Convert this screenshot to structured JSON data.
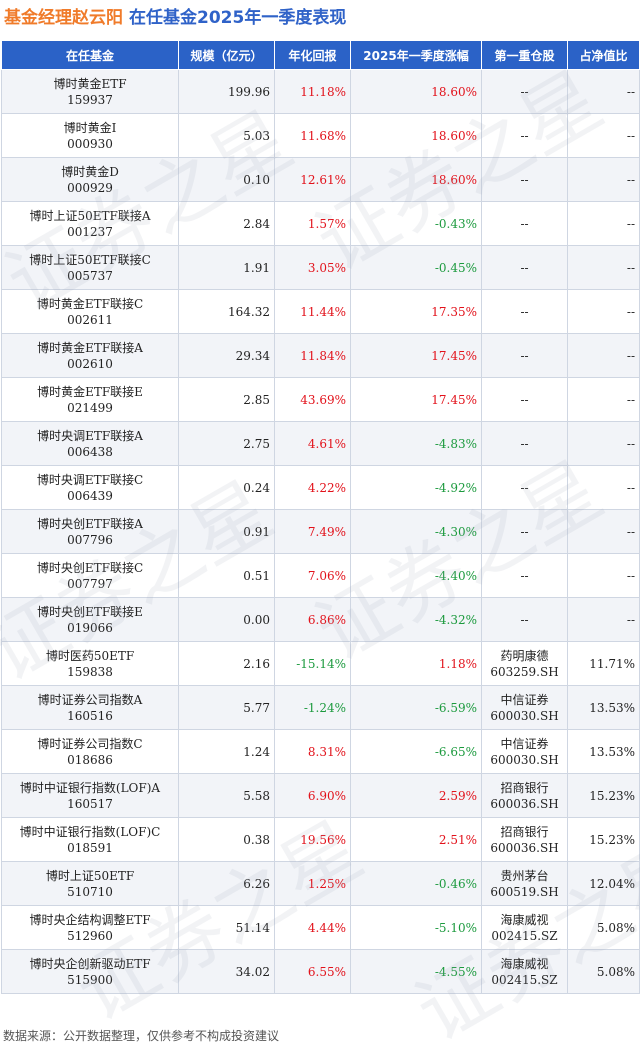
{
  "title": {
    "manager": "基金经理赵云阳",
    "subtitle": "在任基金2025年一季度表现"
  },
  "columns": [
    "在任基金",
    "规模（亿元）",
    "年化回报",
    "2025年一季度涨幅",
    "第一重仓股",
    "占净值比"
  ],
  "rows": [
    {
      "name": "博时黄金ETF",
      "code": "159937",
      "size": "199.96",
      "annual": "11.18%",
      "q1": "18.60%",
      "stock": "--",
      "stock_code": "",
      "ratio": "--"
    },
    {
      "name": "博时黄金I",
      "code": "000930",
      "size": "5.03",
      "annual": "11.68%",
      "q1": "18.60%",
      "stock": "--",
      "stock_code": "",
      "ratio": "--"
    },
    {
      "name": "博时黄金D",
      "code": "000929",
      "size": "0.10",
      "annual": "12.61%",
      "q1": "18.60%",
      "stock": "--",
      "stock_code": "",
      "ratio": "--"
    },
    {
      "name": "博时上证50ETF联接A",
      "code": "001237",
      "size": "2.84",
      "annual": "1.57%",
      "q1": "-0.43%",
      "stock": "--",
      "stock_code": "",
      "ratio": "--"
    },
    {
      "name": "博时上证50ETF联接C",
      "code": "005737",
      "size": "1.91",
      "annual": "3.05%",
      "q1": "-0.45%",
      "stock": "--",
      "stock_code": "",
      "ratio": "--"
    },
    {
      "name": "博时黄金ETF联接C",
      "code": "002611",
      "size": "164.32",
      "annual": "11.44%",
      "q1": "17.35%",
      "stock": "--",
      "stock_code": "",
      "ratio": "--"
    },
    {
      "name": "博时黄金ETF联接A",
      "code": "002610",
      "size": "29.34",
      "annual": "11.84%",
      "q1": "17.45%",
      "stock": "--",
      "stock_code": "",
      "ratio": "--"
    },
    {
      "name": "博时黄金ETF联接E",
      "code": "021499",
      "size": "2.85",
      "annual": "43.69%",
      "q1": "17.45%",
      "stock": "--",
      "stock_code": "",
      "ratio": "--"
    },
    {
      "name": "博时央调ETF联接A",
      "code": "006438",
      "size": "2.75",
      "annual": "4.61%",
      "q1": "-4.83%",
      "stock": "--",
      "stock_code": "",
      "ratio": "--"
    },
    {
      "name": "博时央调ETF联接C",
      "code": "006439",
      "size": "0.24",
      "annual": "4.22%",
      "q1": "-4.92%",
      "stock": "--",
      "stock_code": "",
      "ratio": "--"
    },
    {
      "name": "博时央创ETF联接A",
      "code": "007796",
      "size": "0.91",
      "annual": "7.49%",
      "q1": "-4.30%",
      "stock": "--",
      "stock_code": "",
      "ratio": "--"
    },
    {
      "name": "博时央创ETF联接C",
      "code": "007797",
      "size": "0.51",
      "annual": "7.06%",
      "q1": "-4.40%",
      "stock": "--",
      "stock_code": "",
      "ratio": "--"
    },
    {
      "name": "博时央创ETF联接E",
      "code": "019066",
      "size": "0.00",
      "annual": "6.86%",
      "q1": "-4.32%",
      "stock": "--",
      "stock_code": "",
      "ratio": "--"
    },
    {
      "name": "博时医药50ETF",
      "code": "159838",
      "size": "2.16",
      "annual": "-15.14%",
      "q1": "1.18%",
      "stock": "药明康德",
      "stock_code": "603259.SH",
      "ratio": "11.71%"
    },
    {
      "name": "博时证券公司指数A",
      "code": "160516",
      "size": "5.77",
      "annual": "-1.24%",
      "q1": "-6.59%",
      "stock": "中信证券",
      "stock_code": "600030.SH",
      "ratio": "13.53%"
    },
    {
      "name": "博时证券公司指数C",
      "code": "018686",
      "size": "1.24",
      "annual": "8.31%",
      "q1": "-6.65%",
      "stock": "中信证券",
      "stock_code": "600030.SH",
      "ratio": "13.53%"
    },
    {
      "name": "博时中证银行指数(LOF)A",
      "code": "160517",
      "size": "5.58",
      "annual": "6.90%",
      "q1": "2.59%",
      "stock": "招商银行",
      "stock_code": "600036.SH",
      "ratio": "15.23%"
    },
    {
      "name": "博时中证银行指数(LOF)C",
      "code": "018591",
      "size": "0.38",
      "annual": "19.56%",
      "q1": "2.51%",
      "stock": "招商银行",
      "stock_code": "600036.SH",
      "ratio": "15.23%"
    },
    {
      "name": "博时上证50ETF",
      "code": "510710",
      "size": "6.26",
      "annual": "1.25%",
      "q1": "-0.46%",
      "stock": "贵州茅台",
      "stock_code": "600519.SH",
      "ratio": "12.04%"
    },
    {
      "name": "博时央企结构调整ETF",
      "code": "512960",
      "size": "51.14",
      "annual": "4.44%",
      "q1": "-5.10%",
      "stock": "海康威视",
      "stock_code": "002415.SZ",
      "ratio": "5.08%"
    },
    {
      "name": "博时央企创新驱动ETF",
      "code": "515900",
      "size": "34.02",
      "annual": "6.55%",
      "q1": "-4.55%",
      "stock": "海康威视",
      "stock_code": "002415.SZ",
      "ratio": "5.08%"
    }
  ],
  "colors": {
    "header_bg": "#2b62c7",
    "title_orange": "#f07b2a",
    "title_blue": "#2f62c8",
    "positive": "#e2121b",
    "negative": "#1c9a3e"
  },
  "watermark": "证券之星",
  "footer": "数据来源：公开数据整理，仅供参考不构成投资建议"
}
